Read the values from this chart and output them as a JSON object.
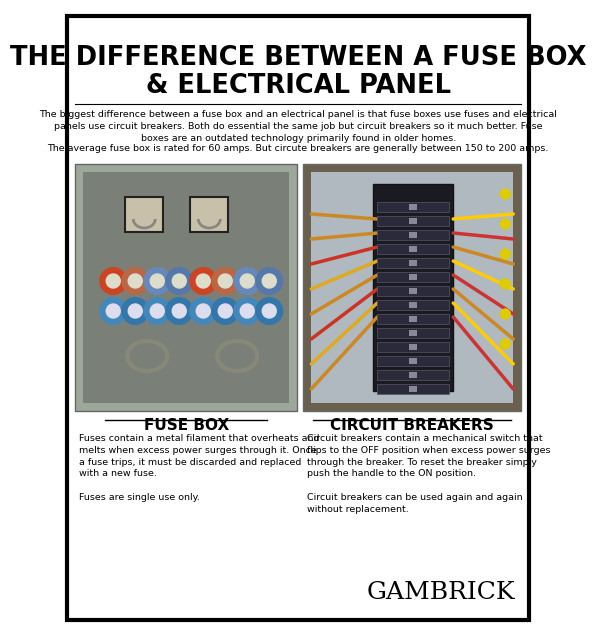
{
  "title_line1": "THE DIFFERENCE BETWEEN A FUSE BOX",
  "title_line2": "& ELECTRICAL PANEL",
  "bg_color": "#ffffff",
  "border_color": "#000000",
  "intro_text": "The biggest difference between a fuse box and an electrical panel is that fuse boxes use fuses and electrical\npanels use circuit breakers. Both do essential the same job but circuit breakers so it much better. Fuse\nboxes are an outdated technology primarily found in older homes.",
  "avg_text": "The average fuse box is rated for 60 amps. But circute breakers are generally between 150 to 200 amps.",
  "left_label": "FUSE BOX",
  "right_label": "CIRCUIT BREAKERS",
  "left_desc": "Fuses contain a metal filament that overheats and\nmelts when excess power surges through it. Once\na fuse trips, it must be discarded and replaced\nwith a new fuse.\n\nFuses are single use only.",
  "right_desc": "Circuit breakers contain a mechanical switch that\nflips to the OFF position when excess power surges\nthrough the breaker. To reset the breaker simply\npush the handle to the ON position.\n\nCircuit breakers can be used again and again\nwithout replacement.",
  "brand": "GAMBRICK",
  "title_fontsize": 18.5,
  "label_fontsize": 11,
  "body_fontsize": 6.8,
  "brand_fontsize": 18,
  "left_img_color": "#a0a898",
  "right_img_color": "#8a7a60"
}
